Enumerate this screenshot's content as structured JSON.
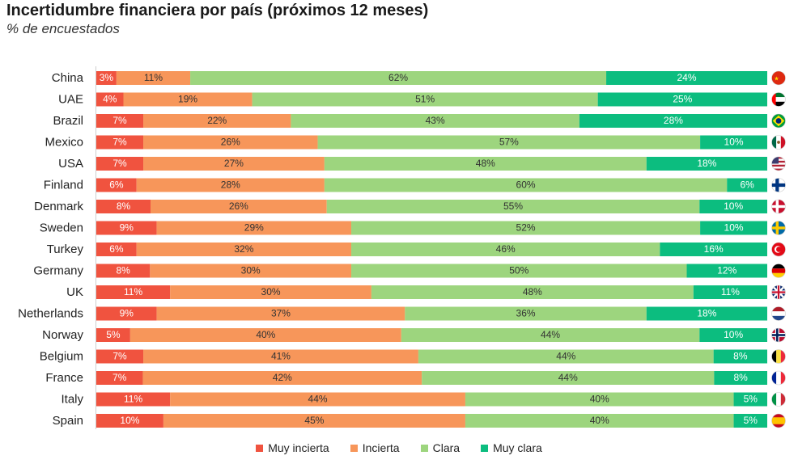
{
  "title": "Incertidumbre financiera por país (próximos 12 meses)",
  "subtitle": "% de encuestados",
  "chart_data": {
    "type": "bar",
    "orientation": "horizontal",
    "stacked": true,
    "normalized": true,
    "categories": [
      "China",
      "UAE",
      "Brazil",
      "Mexico",
      "USA",
      "Finland",
      "Denmark",
      "Sweden",
      "Turkey",
      "Germany",
      "UK",
      "Netherlands",
      "Norway",
      "Belgium",
      "France",
      "Italy",
      "Spain"
    ],
    "series": [
      {
        "name": "Muy incierta",
        "color": "#f0533f",
        "values": [
          3,
          4,
          7,
          7,
          7,
          6,
          8,
          9,
          6,
          8,
          11,
          9,
          5,
          7,
          7,
          11,
          10
        ]
      },
      {
        "name": "Incierta",
        "color": "#f7965a",
        "values": [
          11,
          19,
          22,
          26,
          27,
          28,
          26,
          29,
          32,
          30,
          30,
          37,
          40,
          41,
          42,
          44,
          45
        ]
      },
      {
        "name": "Clara",
        "color": "#9dd57e",
        "values": [
          62,
          51,
          43,
          57,
          48,
          60,
          55,
          52,
          46,
          50,
          48,
          36,
          44,
          44,
          44,
          40,
          40
        ]
      },
      {
        "name": "Muy clara",
        "color": "#0cbd7f",
        "values": [
          24,
          25,
          28,
          10,
          18,
          6,
          10,
          10,
          16,
          12,
          11,
          18,
          10,
          8,
          8,
          5,
          5
        ]
      }
    ],
    "value_suffix": "%",
    "flags": [
      "china-flag-icon",
      "uae-flag-icon",
      "brazil-flag-icon",
      "mexico-flag-icon",
      "usa-flag-icon",
      "finland-flag-icon",
      "denmark-flag-icon",
      "sweden-flag-icon",
      "turkey-flag-icon",
      "germany-flag-icon",
      "uk-flag-icon",
      "netherlands-flag-icon",
      "norway-flag-icon",
      "belgium-flag-icon",
      "france-flag-icon",
      "italy-flag-icon",
      "spain-flag-icon"
    ],
    "legend_position": "bottom",
    "grid": false
  }
}
